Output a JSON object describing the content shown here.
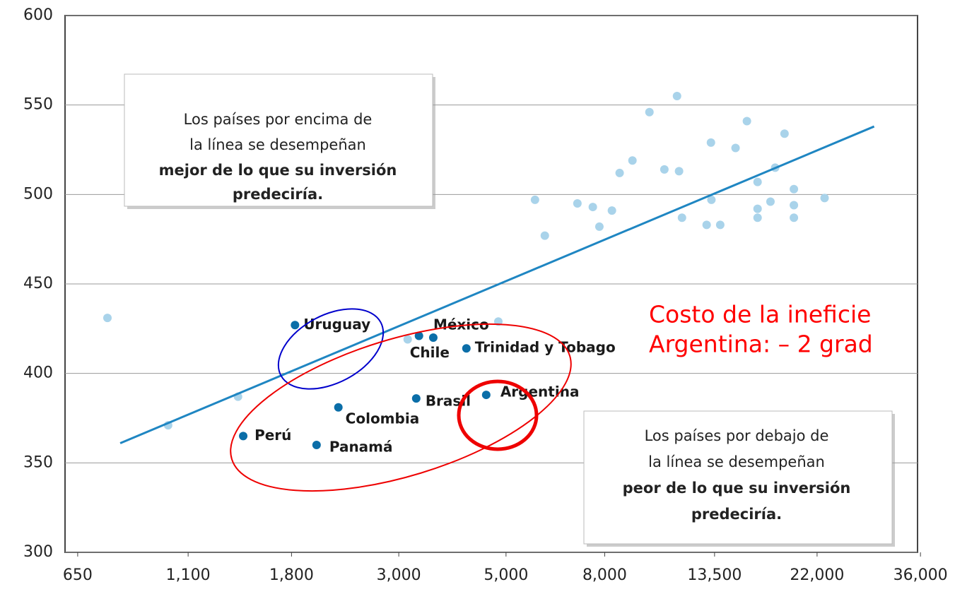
{
  "chart_data": {
    "type": "scatter",
    "xscale": "log",
    "xlim": [
      612,
      35500
    ],
    "ylim": [
      300,
      600
    ],
    "xticks": [
      650,
      {
        "value": 1100,
        "label": "1,100"
      },
      {
        "value": 1800,
        "label": "1,800"
      },
      {
        "value": 3000,
        "label": "3,000"
      },
      {
        "value": 5000,
        "label": "5,000"
      },
      {
        "value": 8000,
        "label": "8,000"
      },
      {
        "value": 13500,
        "label": "13,500"
      },
      {
        "value": 22000,
        "label": "22,000"
      },
      {
        "value": 36000,
        "label": "36,000"
      }
    ],
    "yticks": [
      300,
      350,
      400,
      450,
      500,
      550,
      600
    ],
    "grid": true,
    "series": [
      {
        "color": "#a9d3ea",
        "x": [
          749,
          1000,
          1395,
          3130,
          4820,
          5740,
          6015,
          7025,
          7560,
          7800,
          8280,
          8590,
          9130,
          9900,
          10630,
          11290,
          11400,
          11560,
          13000,
          13270,
          13300,
          13870,
          14920,
          15750,
          16570,
          16570,
          16570,
          17620,
          18020,
          18840,
          19700,
          19700,
          19700,
          22800
        ],
        "values": [
          431,
          371,
          387,
          419,
          429,
          497,
          477,
          495,
          493,
          482,
          491,
          512,
          519,
          546,
          514,
          555,
          513,
          487,
          483,
          529,
          497,
          483,
          526,
          541,
          507,
          492,
          487,
          496,
          515,
          534,
          503,
          494,
          487,
          498
        ]
      },
      {
        "color": "#0b6ea8",
        "labels": [
          "Uruguay",
          "México",
          "Chile",
          "Trinidad y Tobago",
          "Brasil",
          "Argentina",
          "Colombia",
          "Perú",
          "Panamá"
        ],
        "x": [
          1830,
          3536,
          3303,
          4140,
          3260,
          4550,
          2250,
          1430,
          2028
        ],
        "values": [
          427,
          420,
          421,
          414,
          386,
          388,
          381,
          365,
          360
        ]
      },
      {
        "kind": "line",
        "color": "#1f86c2",
        "x": [
          796,
          28870
        ],
        "values": [
          361,
          538
        ]
      }
    ],
    "annotations": {
      "above": [
        "Los países por encima de",
        "la línea se desempeñan",
        "mejor de lo que su inversión",
        "predeciría."
      ],
      "below": [
        "Los países por debajo de",
        "la línea se desempeñan",
        "peor de lo que su inversión",
        "predeciría."
      ],
      "cost": [
        "Costo de la ineficie",
        "Argentina: – 2 grad"
      ]
    }
  }
}
